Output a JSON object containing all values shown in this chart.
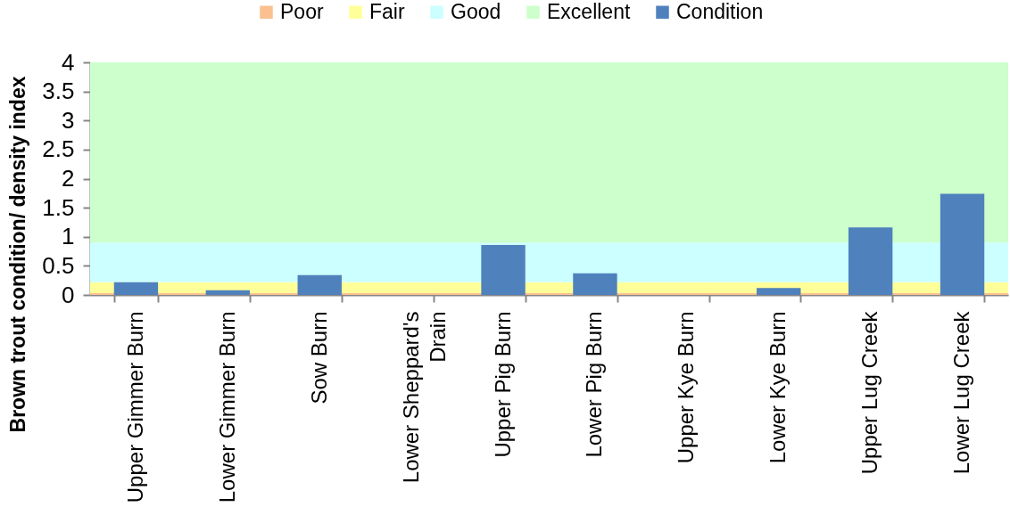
{
  "chart_data": {
    "type": "bar",
    "categories": [
      "Upper Gimmer Burn",
      "Lower Gimmer Burn",
      "Sow Burn",
      "Lower Sheppard's Drain",
      "Upper Pig Burn",
      "Lower Pig Burn",
      "Upper Kye Burn",
      "Lower Kye Burn",
      "Upper Lug Creek",
      "Lower Lug Creek"
    ],
    "series": [
      {
        "name": "Condition",
        "color": "#4f81bd",
        "values": [
          0.22,
          0.08,
          0.34,
          0,
          0.86,
          0.37,
          0,
          0.12,
          1.16,
          1.74
        ]
      }
    ],
    "bands": [
      {
        "axis": "y",
        "from": 0,
        "to": 0.03,
        "label": "Poor",
        "color": "#fac090"
      },
      {
        "axis": "y",
        "from": 0.03,
        "to": 0.22,
        "label": "Fair",
        "color": "#ffff99"
      },
      {
        "axis": "y",
        "from": 0.22,
        "to": 0.9,
        "label": "Good",
        "color": "#ccffff"
      },
      {
        "axis": "y",
        "from": 0.9,
        "to": 4,
        "label": "Excellent",
        "color": "#ccffcc"
      }
    ],
    "ylabel": "Brown trout condition/ density index",
    "ylim": [
      0,
      4
    ],
    "yticks": [
      0,
      0.5,
      1,
      1.5,
      2,
      2.5,
      3,
      3.5,
      4
    ],
    "legend": "top"
  }
}
